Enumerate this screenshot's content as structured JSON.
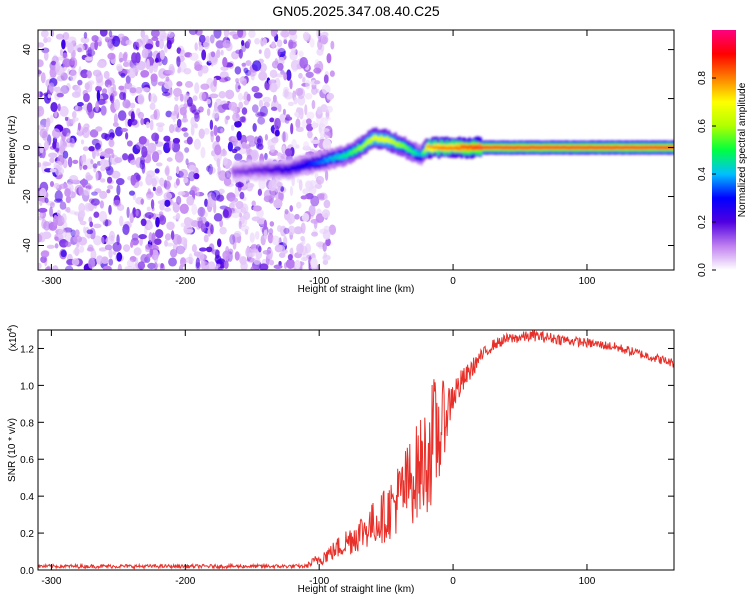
{
  "figure": {
    "title": "GN05.2025.347.08.40.C25"
  },
  "chart_data": [
    {
      "type": "heatmap",
      "name": "spectrogram",
      "title": "GN05.2025.347.08.40.C25",
      "xlabel": "Height of straight line (km)",
      "ylabel": "Frequency (Hz)",
      "xlim": [
        -310,
        165
      ],
      "ylim": [
        -50,
        48
      ],
      "xticks": [
        -300,
        -200,
        -100,
        0,
        100
      ],
      "yticks": [
        -40,
        -20,
        0,
        20,
        40
      ],
      "colorscale": "rainbow",
      "colorbar": {
        "label": "Normalized spectral amplitude",
        "range": [
          0,
          1
        ],
        "ticks": [
          "0.0",
          "0.2",
          "0.4",
          "0.6",
          "0.8"
        ],
        "stops": [
          "#ffffff",
          "#c080f0",
          "#5000e0",
          "#0000ff",
          "#00c0ff",
          "#00ff40",
          "#b0ff00",
          "#ffff00",
          "#ff8000",
          "#ff0000",
          "#ff0080"
        ]
      },
      "noise_region": {
        "x_range": [
          -310,
          -100
        ],
        "description": "scattered purple low-amplitude speckles"
      },
      "signal_ridge": {
        "x": [
          -165,
          -140,
          -125,
          -110,
          -95,
          -80,
          -70,
          -60,
          -50,
          -40,
          -30,
          -25,
          -20,
          -10,
          0,
          10,
          20,
          165
        ],
        "freq": [
          -10,
          -9,
          -9,
          -7,
          -5,
          -3,
          0,
          4,
          3,
          1,
          -2,
          -3,
          0,
          0,
          0,
          0,
          0,
          0
        ],
        "peak_amplitude": [
          0.15,
          0.2,
          0.25,
          0.3,
          0.4,
          0.5,
          0.6,
          0.7,
          0.7,
          0.6,
          0.5,
          0.4,
          0.8,
          0.85,
          0.85,
          0.9,
          0.95,
          0.95
        ]
      }
    },
    {
      "type": "line",
      "name": "snr",
      "xlabel": "Height of straight line (km)",
      "ylabel": "SNR (10 * v/v)",
      "y_multiplier_label": "(x10",
      "y_multiplier_exponent": "4",
      "xlim": [
        -310,
        165
      ],
      "ylim": [
        0,
        1.3
      ],
      "xticks": [
        -300,
        -200,
        -100,
        0,
        100
      ],
      "yticks": [
        "0.0",
        "0.2",
        "0.4",
        "0.6",
        "0.8",
        "1.0",
        "1.2"
      ],
      "color": "#e8302a",
      "series": [
        {
          "x": [
            -310,
            -250,
            -200,
            -150,
            -110,
            -100,
            -90,
            -80,
            -70,
            -60,
            -50,
            -40,
            -30,
            -20,
            -15,
            -10,
            -5,
            0,
            10,
            20,
            30,
            40,
            50,
            60,
            70,
            80,
            90,
            100,
            110,
            120,
            130,
            140,
            150,
            165
          ],
          "y": [
            0.02,
            0.02,
            0.02,
            0.02,
            0.02,
            0.06,
            0.1,
            0.15,
            0.2,
            0.25,
            0.3,
            0.4,
            0.5,
            0.6,
            0.7,
            0.75,
            0.85,
            0.95,
            1.05,
            1.15,
            1.22,
            1.25,
            1.26,
            1.27,
            1.26,
            1.25,
            1.24,
            1.23,
            1.22,
            1.21,
            1.19,
            1.17,
            1.15,
            1.12
          ],
          "noise_amplitude": [
            0.01,
            0.01,
            0.01,
            0.01,
            0.01,
            0.04,
            0.05,
            0.08,
            0.1,
            0.12,
            0.15,
            0.2,
            0.25,
            0.3,
            0.35,
            0.3,
            0.15,
            0.1,
            0.06,
            0.04,
            0.03,
            0.03,
            0.03,
            0.03,
            0.03,
            0.03,
            0.025,
            0.025,
            0.025,
            0.025,
            0.025,
            0.025,
            0.025,
            0.025
          ]
        }
      ]
    }
  ]
}
